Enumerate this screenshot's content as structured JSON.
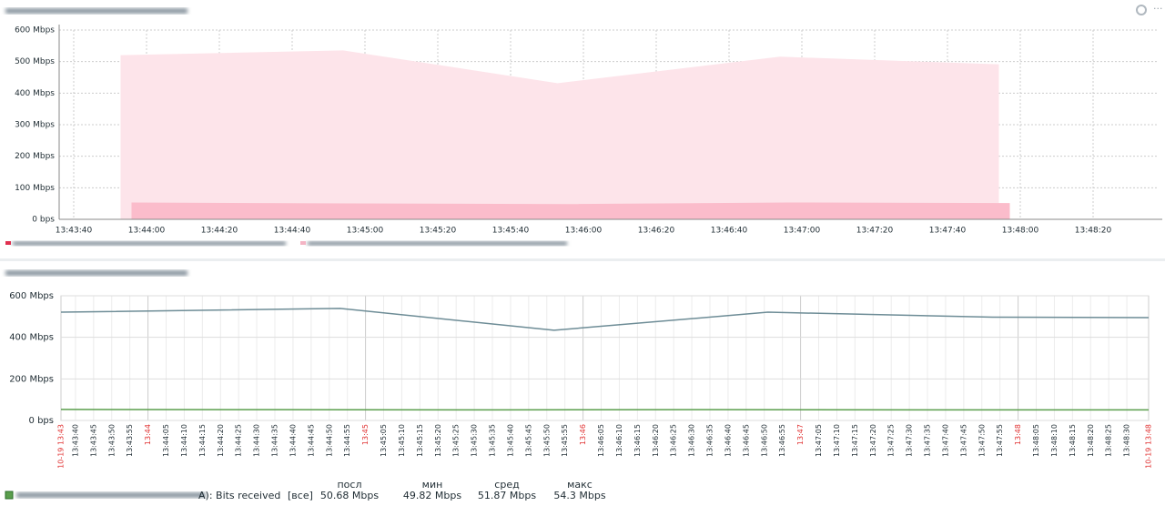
{
  "chart_data": [
    {
      "type": "area",
      "ylim": [
        0,
        600
      ],
      "yticks": [
        {
          "value": 0,
          "label": "0 bps"
        },
        {
          "value": 100,
          "label": "100 Mbps"
        },
        {
          "value": 200,
          "label": "200 Mbps"
        },
        {
          "value": 300,
          "label": "300 Mbps"
        },
        {
          "value": 400,
          "label": "400 Mbps"
        },
        {
          "value": 500,
          "label": "500 Mbps"
        },
        {
          "value": 600,
          "label": "600 Mbps"
        }
      ],
      "xlim": [
        "13:43:36",
        "13:48:38"
      ],
      "xticks": [
        "13:43:40",
        "13:44:00",
        "13:44:20",
        "13:44:40",
        "13:45:00",
        "13:45:20",
        "13:45:40",
        "13:46:00",
        "13:46:20",
        "13:46:40",
        "13:47:00",
        "13:47:20",
        "13:47:40",
        "13:48:00",
        "13:48:20"
      ],
      "grid": true,
      "series": [
        {
          "color": "#fde4ea",
          "x": [
            "13:43:53",
            "13:44:54",
            "13:45:53",
            "13:46:54",
            "13:47:54"
          ],
          "values": [
            519,
            534,
            430,
            514,
            490
          ]
        },
        {
          "color": "#fbbccb",
          "x": [
            "13:43:56",
            "13:44:56",
            "13:45:56",
            "13:46:56",
            "13:47:57"
          ],
          "values": [
            52,
            49,
            47,
            52,
            50
          ]
        }
      ]
    },
    {
      "type": "line",
      "ylim": [
        0,
        600
      ],
      "yticks": [
        {
          "value": 0,
          "label": "0 bps"
        },
        {
          "value": 200,
          "label": "200 Mbps"
        },
        {
          "value": 400,
          "label": "400 Mbps"
        },
        {
          "value": 600,
          "label": "600 Mbps"
        }
      ],
      "xlim": [
        "13:43:36",
        "13:48:36"
      ],
      "major_tick_color": "#e03030",
      "grid": true,
      "xticks": [
        {
          "value": "13:43:36",
          "label": "10-19 13:43"
        },
        "13:43:40",
        "13:43:45",
        "13:43:50",
        "13:43:55",
        {
          "value": "13:44:00",
          "label": "13:44"
        },
        "13:44:05",
        "13:44:10",
        "13:44:15",
        "13:44:20",
        "13:44:25",
        "13:44:30",
        "13:44:35",
        "13:44:40",
        "13:44:45",
        "13:44:50",
        "13:44:55",
        {
          "value": "13:45:00",
          "label": "13:45"
        },
        "13:45:05",
        "13:45:10",
        "13:45:15",
        "13:45:20",
        "13:45:25",
        "13:45:30",
        "13:45:35",
        "13:45:40",
        "13:45:45",
        "13:45:50",
        "13:45:55",
        {
          "value": "13:46:00",
          "label": "13:46"
        },
        "13:46:05",
        "13:46:10",
        "13:46:15",
        "13:46:20",
        "13:46:25",
        "13:46:30",
        "13:46:35",
        "13:46:40",
        "13:46:45",
        "13:46:50",
        "13:46:55",
        {
          "value": "13:47:00",
          "label": "13:47"
        },
        "13:47:05",
        "13:47:10",
        "13:47:15",
        "13:47:20",
        "13:47:25",
        "13:47:30",
        "13:47:35",
        "13:47:40",
        "13:47:45",
        "13:47:50",
        "13:47:55",
        {
          "value": "13:48:00",
          "label": "13:48"
        },
        "13:48:05",
        "13:48:10",
        "13:48:15",
        "13:48:20",
        "13:48:25",
        "13:48:30",
        {
          "value": "13:48:36",
          "label": "10-19 13:48"
        }
      ],
      "series": [
        {
          "color": "#6d8c96",
          "x": [
            "13:43:36",
            "13:44:53",
            "13:45:52",
            "13:46:51",
            "13:47:53",
            "13:48:36"
          ],
          "values": [
            521,
            539,
            434,
            521,
            497,
            495
          ]
        },
        {
          "name": "A): Bits received",
          "color": "#5a9e4c",
          "x": [
            "13:43:36",
            "13:44:36",
            "13:45:36",
            "13:46:36",
            "13:47:36",
            "13:48:36"
          ],
          "values": [
            53,
            52,
            51,
            52,
            51,
            51
          ]
        }
      ],
      "legend": {
        "scope": "[все]",
        "columns": [
          "посл",
          "мин",
          "сред",
          "макс"
        ],
        "stats": [
          {
            "value": 50.68,
            "label": "50.68 Mbps"
          },
          {
            "value": 49.82,
            "label": "49.82 Mbps"
          },
          {
            "value": 51.87,
            "label": "51.87 Mbps"
          },
          {
            "value": 54.3,
            "label": "54.3 Mbps"
          }
        ]
      }
    }
  ]
}
